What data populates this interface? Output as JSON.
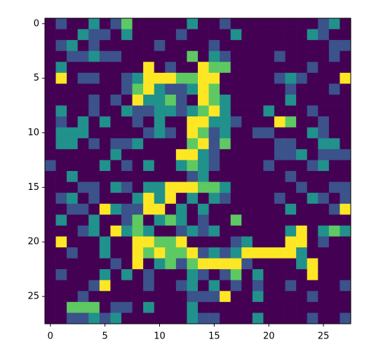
{
  "chart_data": {
    "type": "heatmap",
    "colormap": "viridis",
    "vmin": 0,
    "vmax": 4,
    "xlim": [
      -0.5,
      27.5
    ],
    "ylim": [
      27.5,
      -0.5
    ],
    "xticks": [
      0,
      5,
      10,
      15,
      20,
      25
    ],
    "yticks": [
      0,
      5,
      10,
      15,
      20,
      25
    ],
    "values": [
      [
        0,
        1,
        0,
        0,
        2,
        0,
        1,
        3,
        0,
        0,
        0,
        0,
        0,
        2,
        0,
        0,
        1,
        0,
        0,
        0,
        0,
        0,
        0,
        0,
        0,
        1,
        2,
        0
      ],
      [
        0,
        0,
        0,
        2,
        1,
        1,
        0,
        2,
        0,
        0,
        0,
        0,
        1,
        0,
        0,
        0,
        0,
        2,
        0,
        0,
        0,
        0,
        0,
        0,
        2,
        1,
        0,
        0
      ],
      [
        0,
        1,
        2,
        0,
        1,
        0,
        0,
        0,
        0,
        0,
        1,
        0,
        0,
        0,
        0,
        1,
        0,
        0,
        0,
        0,
        0,
        0,
        0,
        0,
        0,
        0,
        1,
        1
      ],
      [
        0,
        0,
        1,
        1,
        2,
        1,
        1,
        0,
        0,
        0,
        0,
        0,
        0,
        3,
        0,
        2,
        1,
        0,
        0,
        0,
        0,
        1,
        0,
        0,
        0,
        0,
        1,
        0
      ],
      [
        0,
        2,
        0,
        0,
        0,
        0,
        0,
        0,
        0,
        4,
        0,
        1,
        0,
        0,
        4,
        3,
        3,
        0,
        0,
        0,
        0,
        0,
        0,
        0,
        1,
        0,
        0,
        0
      ],
      [
        0,
        4,
        0,
        1,
        1,
        0,
        0,
        1,
        2,
        4,
        4,
        4,
        3,
        3,
        4,
        4,
        0,
        0,
        0,
        0,
        0,
        1,
        2,
        1,
        0,
        0,
        0,
        4
      ],
      [
        0,
        0,
        0,
        0,
        0,
        0,
        0,
        1,
        3,
        4,
        2,
        1,
        1,
        2,
        4,
        3,
        0,
        0,
        0,
        0,
        0,
        0,
        1,
        0,
        0,
        0,
        1,
        0
      ],
      [
        0,
        0,
        0,
        0,
        1,
        0,
        1,
        0,
        4,
        2,
        2,
        3,
        1,
        0,
        4,
        3,
        2,
        0,
        0,
        0,
        0,
        0,
        2,
        0,
        0,
        0,
        0,
        0
      ],
      [
        0,
        2,
        0,
        0,
        1,
        0,
        0,
        2,
        1,
        1,
        2,
        2,
        1,
        2,
        3,
        4,
        2,
        0,
        0,
        0,
        2,
        0,
        0,
        0,
        1,
        0,
        0,
        0
      ],
      [
        0,
        1,
        0,
        2,
        0,
        2,
        0,
        0,
        1,
        0,
        2,
        0,
        0,
        4,
        4,
        2,
        2,
        1,
        0,
        0,
        0,
        4,
        3,
        0,
        0,
        1,
        0,
        0
      ],
      [
        0,
        2,
        2,
        2,
        0,
        0,
        0,
        0,
        0,
        1,
        2,
        1,
        0,
        4,
        3,
        1,
        2,
        0,
        0,
        1,
        1,
        0,
        0,
        0,
        2,
        1,
        0,
        0
      ],
      [
        0,
        2,
        2,
        0,
        1,
        0,
        1,
        1,
        2,
        0,
        0,
        0,
        0,
        3,
        4,
        1,
        3,
        0,
        0,
        0,
        0,
        1,
        1,
        0,
        0,
        2,
        2,
        0
      ],
      [
        0,
        0,
        0,
        0,
        0,
        0,
        2,
        0,
        0,
        0,
        0,
        0,
        4,
        4,
        2,
        1,
        0,
        0,
        0,
        0,
        0,
        1,
        1,
        2,
        0,
        1,
        1,
        1
      ],
      [
        1,
        0,
        0,
        0,
        0,
        2,
        0,
        1,
        0,
        2,
        0,
        0,
        2,
        3,
        2,
        1,
        0,
        0,
        0,
        0,
        1,
        0,
        0,
        0,
        1,
        2,
        0,
        0
      ],
      [
        0,
        0,
        2,
        0,
        0,
        0,
        0,
        0,
        0,
        0,
        0,
        0,
        0,
        1,
        2,
        0,
        0,
        0,
        0,
        0,
        0,
        0,
        1,
        0,
        0,
        0,
        0,
        0
      ],
      [
        0,
        0,
        0,
        1,
        1,
        0,
        2,
        1,
        0,
        2,
        2,
        4,
        4,
        4,
        3,
        3,
        2,
        0,
        0,
        0,
        0,
        0,
        0,
        1,
        0,
        0,
        1,
        1
      ],
      [
        0,
        1,
        2,
        0,
        1,
        0,
        0,
        0,
        2,
        4,
        2,
        4,
        0,
        2,
        0,
        2,
        1,
        0,
        0,
        0,
        0,
        1,
        0,
        0,
        2,
        1,
        0,
        1
      ],
      [
        0,
        0,
        1,
        1,
        0,
        4,
        2,
        1,
        1,
        4,
        4,
        0,
        2,
        0,
        2,
        0,
        0,
        0,
        0,
        0,
        0,
        0,
        2,
        0,
        0,
        0,
        1,
        4
      ],
      [
        0,
        2,
        0,
        0,
        2,
        0,
        0,
        1,
        3,
        0,
        2,
        3,
        2,
        0,
        1,
        0,
        0,
        3,
        0,
        0,
        0,
        0,
        0,
        0,
        0,
        0,
        0,
        0
      ],
      [
        0,
        0,
        0,
        1,
        2,
        0,
        4,
        2,
        3,
        2,
        0,
        0,
        1,
        2,
        1,
        2,
        0,
        0,
        0,
        0,
        0,
        0,
        2,
        4,
        0,
        2,
        3,
        2
      ],
      [
        0,
        4,
        0,
        0,
        0,
        2,
        0,
        0,
        4,
        4,
        3,
        3,
        4,
        0,
        0,
        0,
        0,
        1,
        2,
        0,
        0,
        0,
        4,
        4,
        0,
        1,
        0,
        0
      ],
      [
        0,
        0,
        1,
        0,
        0,
        2,
        0,
        0,
        4,
        3,
        4,
        3,
        3,
        4,
        1,
        2,
        1,
        2,
        4,
        4,
        4,
        4,
        4,
        2,
        0,
        0,
        0,
        0
      ],
      [
        0,
        0,
        0,
        0,
        0,
        0,
        1,
        0,
        4,
        0,
        2,
        3,
        1,
        3,
        4,
        4,
        4,
        4,
        1,
        0,
        0,
        0,
        0,
        2,
        4,
        0,
        0,
        0
      ],
      [
        0,
        1,
        0,
        0,
        0,
        2,
        0,
        2,
        0,
        1,
        0,
        0,
        0,
        2,
        1,
        0,
        1,
        3,
        0,
        2,
        0,
        0,
        0,
        0,
        4,
        0,
        0,
        0
      ],
      [
        0,
        0,
        0,
        0,
        1,
        4,
        0,
        0,
        0,
        1,
        0,
        0,
        1,
        2,
        0,
        2,
        0,
        1,
        0,
        1,
        0,
        0,
        1,
        0,
        0,
        0,
        0,
        1
      ],
      [
        0,
        0,
        0,
        1,
        0,
        0,
        0,
        0,
        0,
        0,
        0,
        0,
        0,
        1,
        1,
        1,
        4,
        0,
        0,
        2,
        0,
        0,
        0,
        0,
        1,
        0,
        0,
        0
      ],
      [
        0,
        0,
        3,
        3,
        3,
        0,
        1,
        1,
        0,
        2,
        0,
        0,
        0,
        2,
        0,
        0,
        0,
        0,
        0,
        0,
        0,
        0,
        0,
        0,
        0,
        0,
        0,
        0
      ],
      [
        0,
        0,
        1,
        1,
        2,
        1,
        2,
        0,
        0,
        0,
        0,
        0,
        0,
        2,
        1,
        1,
        0,
        0,
        0,
        2,
        0,
        0,
        0,
        0,
        1,
        0,
        0,
        1
      ]
    ]
  }
}
